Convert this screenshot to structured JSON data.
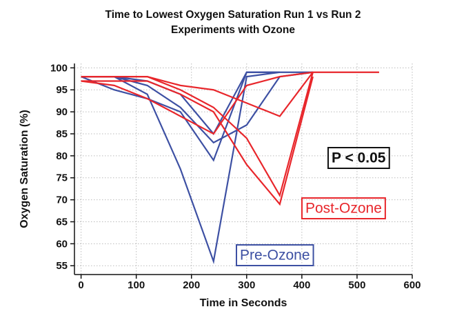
{
  "chart_data": {
    "type": "line",
    "title": "Time to Lowest Oxygen Saturation Run 1 vs Run 2",
    "subtitle": "Experiments with Ozone",
    "x_label": "Time in Seconds",
    "y_label": "Oxygen Saturation (%)",
    "xlim": [
      -12,
      600
    ],
    "ylim": [
      53,
      101
    ],
    "xticks": [
      0,
      100,
      200,
      300,
      400,
      500,
      600
    ],
    "yticks": [
      55,
      60,
      65,
      70,
      75,
      80,
      85,
      90,
      95,
      100
    ],
    "grid": true,
    "series": [
      {
        "color": "#3d50a3",
        "x": [
          0,
          60,
          120,
          180,
          240,
          300,
          360,
          420
        ],
        "values": [
          98,
          98,
          94,
          77,
          56,
          98,
          99,
          99
        ]
      },
      {
        "color": "#3d50a3",
        "x": [
          0,
          60,
          120,
          180,
          240,
          300,
          360
        ],
        "values": [
          98,
          95,
          93,
          90,
          79,
          99,
          99
        ]
      },
      {
        "color": "#3d50a3",
        "x": [
          0,
          60,
          120,
          180,
          240,
          300,
          360,
          420
        ],
        "values": [
          98,
          98,
          96,
          91,
          83,
          87,
          98,
          99
        ]
      },
      {
        "color": "#3d50a3",
        "x": [
          0,
          60,
          120,
          180,
          240,
          300,
          360
        ],
        "values": [
          98,
          98,
          97,
          94,
          85,
          99,
          99
        ]
      },
      {
        "color": "#e8262b",
        "x": [
          0,
          60,
          120,
          180,
          240,
          300,
          360,
          420,
          480,
          540
        ],
        "values": [
          97,
          96,
          93,
          89,
          85,
          96,
          98,
          99,
          99,
          99
        ]
      },
      {
        "color": "#e8262b",
        "x": [
          0,
          60,
          120,
          180,
          240,
          300,
          360,
          420
        ],
        "values": [
          98,
          98,
          98,
          96,
          95,
          92,
          89,
          99
        ]
      },
      {
        "color": "#e8262b",
        "x": [
          0,
          60,
          120,
          180,
          240,
          300,
          360,
          420
        ],
        "values": [
          97,
          97,
          97,
          94,
          90,
          78,
          69,
          98
        ]
      },
      {
        "color": "#e8262b",
        "x": [
          0,
          60,
          120,
          180,
          240,
          300,
          360,
          420
        ],
        "values": [
          98,
          98,
          98,
          95,
          91,
          84,
          71,
          99
        ]
      }
    ],
    "annotations": [
      {
        "text": "P < 0.05",
        "color": "#111111"
      },
      {
        "text": "Post-Ozone",
        "color": "#e8262b"
      },
      {
        "text": "Pre-Ozone",
        "color": "#3d50a3"
      }
    ]
  }
}
